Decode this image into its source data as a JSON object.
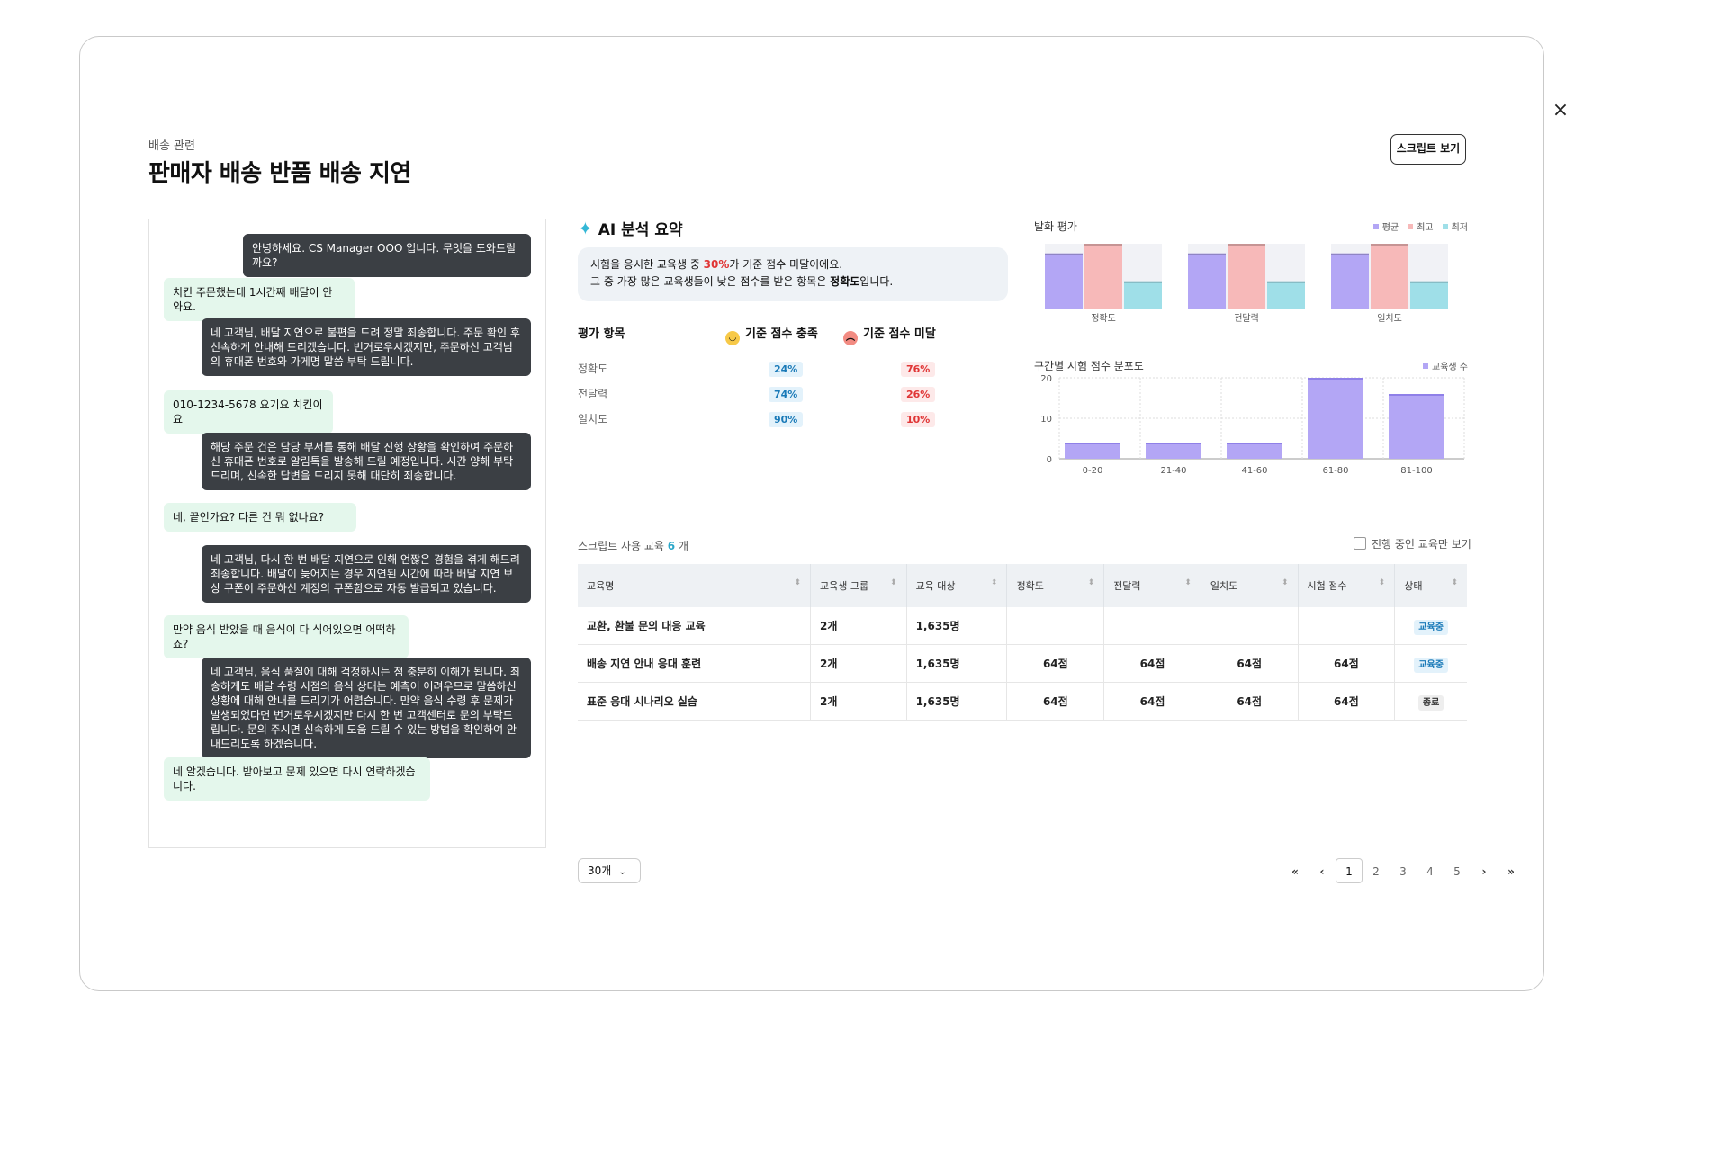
{
  "modal": {
    "close_icon": "×",
    "category": "배송 관련",
    "title": "판매자 배송 반품 배송 지연",
    "script_button": "스크립트 보기"
  },
  "chat": [
    {
      "role": "agent",
      "text": "안녕하세요. CS Manager OOO 입니다. 무엇을 도와드릴까요?"
    },
    {
      "role": "customer",
      "text": "치킨 주문했는데 1시간째 배달이 안 와요."
    },
    {
      "role": "agent",
      "text": "네 고객님, 배달 지연으로 불편을 드려 정말 죄송합니다. 주문 확인 후 신속하게 안내해 드리겠습니다. 번거로우시겠지만, 주문하신 고객님의 휴대폰 번호와 가게명 말씀 부탁 드립니다."
    },
    {
      "role": "customer",
      "text": "010-1234-5678 요기요 치킨이요"
    },
    {
      "role": "agent",
      "text": "해당 주문 건은 담당 부서를 통해 배달 진행 상황을 확인하여 주문하신 휴대폰 번호로 알림톡을 발송해 드릴 예정입니다. 시간 양해 부탁드리며, 신속한 답변을 드리지 못해 대단히 죄송합니다."
    },
    {
      "role": "customer",
      "text": "네, 끝인가요? 다른 건 뭐 없나요?"
    },
    {
      "role": "agent",
      "text": "네 고객님, 다시 한 번 배달 지연으로 인해 언짢은 경험을 겪게 해드려 죄송합니다. 배달이 늦어지는 경우 지연된 시간에 따라 배달 지연 보상 쿠폰이 주문하신 계정의 쿠폰함으로 자동 발급되고 있습니다."
    },
    {
      "role": "customer",
      "text": "만약 음식 받았을 때 음식이 다 식어있으면 어떡하죠?"
    },
    {
      "role": "agent",
      "text": "네 고객님, 음식 품질에 대해 걱정하시는 점 충분히 이해가 됩니다. 죄송하게도 배달 수령 시점의 음식 상태는 예측이 어려우므로 말씀하신 상황에 대해 안내를 드리기가 어렵습니다. 만약 음식 수령 후 문제가 발생되었다면 번거로우시겠지만 다시 한 번 고객센터로 문의 부탁드립니다. 문의 주시면 신속하게 도움 드릴 수 있는 방법을 확인하여 안내드리도록 하겠습니다."
    },
    {
      "role": "customer",
      "text": "네 알겠습니다. 받아보고 문제 있으면 다시 연락하겠습니다."
    }
  ],
  "ai": {
    "icon": "sparkle-icon",
    "title": "AI 분석 요약",
    "summary_line1_pre": "시험을 응시한 교육생 중 ",
    "summary_pct": "30%",
    "summary_line1_post": "가 기준 점수 미달이에요.",
    "summary_line2_pre": "그 중 가장 많은 교육생들이 낮은 점수를 받은 항목은 ",
    "summary_item": "정확도",
    "summary_line2_post": "입니다.",
    "col_item": "평가 항목",
    "col_pass": "기준 점수 충족",
    "col_fail": "기준 점수 미달",
    "rows": [
      {
        "label": "정확도",
        "pass": "24%",
        "fail": "76%"
      },
      {
        "label": "전달력",
        "pass": "74%",
        "fail": "26%"
      },
      {
        "label": "일치도",
        "pass": "90%",
        "fail": "10%"
      }
    ]
  },
  "chart_data": [
    {
      "type": "bar",
      "title": "발화 평가",
      "categories": [
        "정확도",
        "전달력",
        "일치도"
      ],
      "legend_position": "top-right",
      "series": [
        {
          "name": "평균",
          "color": "#b3a6f5",
          "values": [
            85,
            85,
            85
          ]
        },
        {
          "name": "최고",
          "color": "#f7b9b9",
          "values": [
            100,
            100,
            100
          ]
        },
        {
          "name": "최저",
          "color": "#9fdfe8",
          "values": [
            42,
            42,
            42
          ]
        }
      ],
      "ylim": [
        0,
        100
      ],
      "grid": false
    },
    {
      "type": "bar",
      "title": "구간별 시험 점수 분포도",
      "categories": [
        "0-20",
        "21-40",
        "41-60",
        "61-80",
        "81-100"
      ],
      "legend_position": "top-right",
      "series": [
        {
          "name": "교육생 수",
          "color": "#b3a6f5",
          "values": [
            4,
            4,
            4,
            20,
            16
          ]
        }
      ],
      "yticks": [
        0,
        10,
        20
      ],
      "ylim": [
        0,
        20
      ],
      "grid": true
    }
  ],
  "table": {
    "caption_pre": "스크립트 사용 교육 ",
    "count": "6",
    "caption_post": " 개",
    "only_in_progress": "진행 중인 교육만 보기",
    "columns": [
      "교육명",
      "교육생 그룹",
      "교육 대상",
      "정확도",
      "전달력",
      "일치도",
      "시험 점수",
      "상태"
    ],
    "rows": [
      {
        "name": "교환, 환불 문의 대응 교육",
        "group": "2개",
        "target": "1,635명",
        "accuracy": "",
        "delivery": "",
        "consistency": "",
        "score": "",
        "status": "교육중",
        "status_type": "active"
      },
      {
        "name": "배송 지연 안내 응대 훈련",
        "group": "2개",
        "target": "1,635명",
        "accuracy": "64점",
        "delivery": "64점",
        "consistency": "64점",
        "score": "64점",
        "status": "교육중",
        "status_type": "active"
      },
      {
        "name": "표준 응대 시나리오 실습",
        "group": "2개",
        "target": "1,635명",
        "accuracy": "64점",
        "delivery": "64점",
        "consistency": "64점",
        "score": "64점",
        "status": "종료",
        "status_type": "done"
      }
    ]
  },
  "pagination": {
    "page_size": "30개",
    "first": "«",
    "prev": "‹",
    "pages": [
      "1",
      "2",
      "3",
      "4",
      "5"
    ],
    "current": "1",
    "next": "›",
    "last": "»"
  }
}
